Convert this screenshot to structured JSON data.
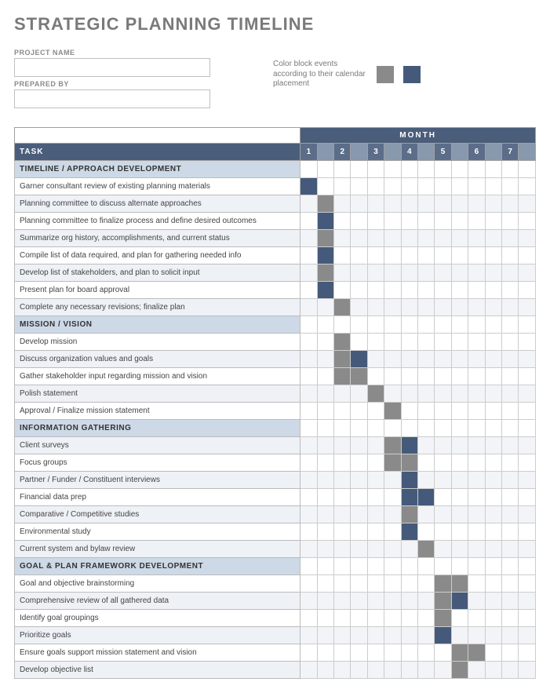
{
  "title": "STRATEGIC PLANNING TIMELINE",
  "meta": {
    "projectNameLabel": "PROJECT NAME",
    "preparedByLabel": "PREPARED BY",
    "projectNameValue": "",
    "preparedByValue": ""
  },
  "legend": {
    "text": "Color block events according to their calendar placement",
    "swatch1": "#8a8a8a",
    "swatch2": "#455a7a"
  },
  "colors": {
    "headerBg": "#4a5d7a",
    "monthNumBg": "#5b6d88",
    "monthNumRightBg": "#8898ad",
    "sectionBg": "#cdd9e6",
    "altRowBg": "#eef1f6",
    "altGridBg": "#f2f4f8",
    "fillLight": "#8a8a8a",
    "fillDark": "#455a7a",
    "border": "#cccccc"
  },
  "gantt": {
    "monthHeader": "MONTH",
    "taskHeader": "TASK",
    "months": [
      "1",
      "2",
      "3",
      "4",
      "5",
      "6",
      "7"
    ],
    "halvesPerMonth": 2,
    "rows": [
      {
        "type": "section",
        "label": "TIMELINE / APPROACH DEVELOPMENT"
      },
      {
        "type": "task",
        "label": "Garner consultant review of existing planning materials",
        "fills": [
          [
            0,
            "d"
          ]
        ]
      },
      {
        "type": "task",
        "label": "Planning committee to discuss alternate approaches",
        "fills": [
          [
            1,
            "l"
          ]
        ]
      },
      {
        "type": "task",
        "label": "Planning committee to finalize process and define desired outcomes",
        "fills": [
          [
            1,
            "d"
          ]
        ]
      },
      {
        "type": "task",
        "label": "Summarize org history, accomplishments, and current status",
        "fills": [
          [
            1,
            "l"
          ]
        ]
      },
      {
        "type": "task",
        "label": "Compile list of data required, and plan for gathering needed info",
        "fills": [
          [
            1,
            "d"
          ]
        ]
      },
      {
        "type": "task",
        "label": "Develop list of stakeholders, and plan to solicit input",
        "fills": [
          [
            1,
            "l"
          ]
        ]
      },
      {
        "type": "task",
        "label": "Present plan for board approval",
        "fills": [
          [
            1,
            "d"
          ]
        ]
      },
      {
        "type": "task",
        "label": "Complete any necessary revisions; finalize plan",
        "fills": [
          [
            2,
            "l"
          ]
        ]
      },
      {
        "type": "section",
        "label": "MISSION / VISION"
      },
      {
        "type": "task",
        "label": "Develop mission",
        "fills": [
          [
            2,
            "l"
          ]
        ]
      },
      {
        "type": "task",
        "label": "Discuss organization values and goals",
        "fills": [
          [
            2,
            "l"
          ],
          [
            3,
            "d"
          ]
        ]
      },
      {
        "type": "task",
        "label": "Gather stakeholder input regarding mission and vision",
        "fills": [
          [
            2,
            "l"
          ],
          [
            3,
            "l"
          ]
        ]
      },
      {
        "type": "task",
        "label": "Polish statement",
        "fills": [
          [
            4,
            "l"
          ]
        ]
      },
      {
        "type": "task",
        "label": "Approval / Finalize mission statement",
        "fills": [
          [
            5,
            "l"
          ]
        ]
      },
      {
        "type": "section",
        "label": "INFORMATION GATHERING"
      },
      {
        "type": "task",
        "label": "Client surveys",
        "fills": [
          [
            5,
            "l"
          ],
          [
            6,
            "d"
          ]
        ]
      },
      {
        "type": "task",
        "label": "Focus groups",
        "fills": [
          [
            5,
            "l"
          ],
          [
            6,
            "l"
          ]
        ]
      },
      {
        "type": "task",
        "label": "Partner / Funder / Constituent interviews",
        "fills": [
          [
            6,
            "d"
          ]
        ]
      },
      {
        "type": "task",
        "label": "Financial data prep",
        "fills": [
          [
            6,
            "d"
          ],
          [
            7,
            "d"
          ]
        ]
      },
      {
        "type": "task",
        "label": "Comparative / Competitive studies",
        "fills": [
          [
            6,
            "l"
          ]
        ]
      },
      {
        "type": "task",
        "label": "Environmental study",
        "fills": [
          [
            6,
            "d"
          ]
        ]
      },
      {
        "type": "task",
        "label": "Current system and bylaw review",
        "fills": [
          [
            7,
            "l"
          ]
        ]
      },
      {
        "type": "section",
        "label": "GOAL & PLAN FRAMEWORK DEVELOPMENT"
      },
      {
        "type": "task",
        "label": "Goal and objective brainstorming",
        "fills": [
          [
            8,
            "l"
          ],
          [
            9,
            "l"
          ]
        ]
      },
      {
        "type": "task",
        "label": "Comprehensive review of all gathered data",
        "fills": [
          [
            8,
            "l"
          ],
          [
            9,
            "d"
          ]
        ]
      },
      {
        "type": "task",
        "label": "Identify goal groupings",
        "fills": [
          [
            8,
            "l"
          ]
        ]
      },
      {
        "type": "task",
        "label": "Prioritize goals",
        "fills": [
          [
            8,
            "d"
          ]
        ]
      },
      {
        "type": "task",
        "label": "Ensure goals support mission statement and vision",
        "fills": [
          [
            9,
            "l"
          ],
          [
            10,
            "l"
          ]
        ]
      },
      {
        "type": "task",
        "label": "Develop objective list",
        "fills": [
          [
            9,
            "l"
          ]
        ]
      }
    ]
  }
}
